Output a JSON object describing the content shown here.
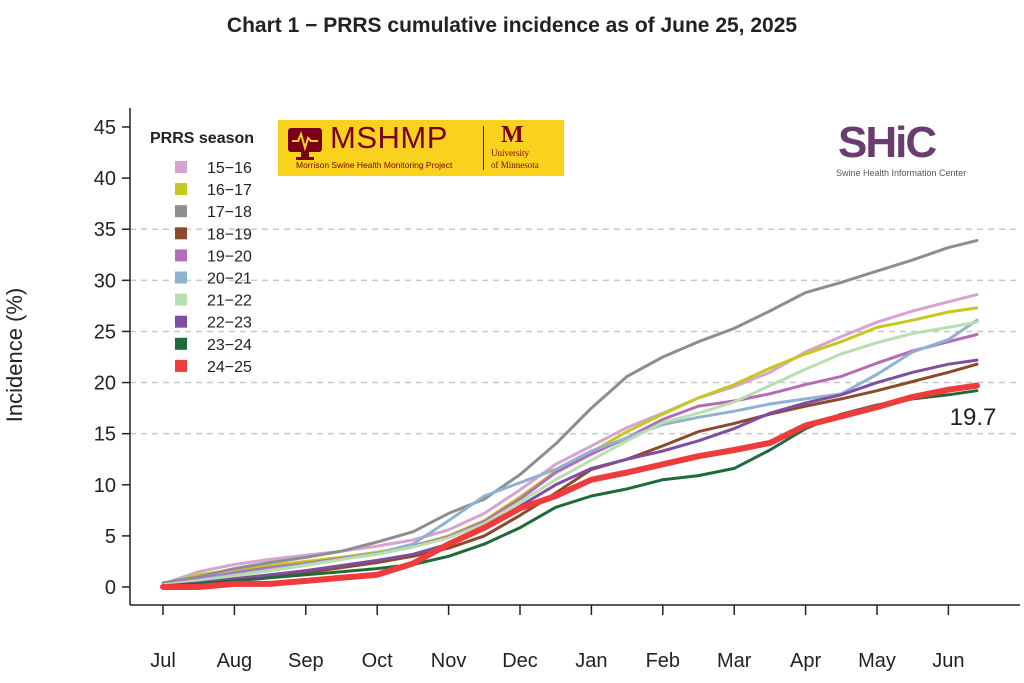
{
  "chart_data": {
    "type": "line",
    "title": "Chart 1 − PRRS cumulative incidence as of June 25, 2025",
    "ylabel": "Incidence (%)",
    "xlabel": "",
    "ylim": [
      0,
      45
    ],
    "yticks": [
      0,
      5,
      10,
      15,
      20,
      25,
      30,
      35,
      40,
      45
    ],
    "dashed_gridlines": [
      15,
      20,
      25,
      30,
      35
    ],
    "xlim": [
      0,
      11.5
    ],
    "x_tick_labels": [
      "Jul",
      "Aug",
      "Sep",
      "Oct",
      "Nov",
      "Dec",
      "Jan",
      "Feb",
      "Mar",
      "Apr",
      "May",
      "Jun"
    ],
    "x_unit": "months since July 1",
    "legend_title": "PRRS season",
    "legend_position": "top-left",
    "annotation": "19.7",
    "series": [
      {
        "name": "15−16",
        "color": "#d8a2d2",
        "x": [
          0,
          0.5,
          1,
          1.5,
          2,
          2.5,
          3,
          3.5,
          4,
          4.5,
          5,
          5.5,
          6,
          6.5,
          7,
          7.5,
          8,
          8.5,
          9,
          9.5,
          10,
          10.5,
          11,
          11.4
        ],
        "values": [
          0.3,
          1.5,
          2.2,
          2.7,
          3.1,
          3.5,
          4.0,
          4.6,
          5.6,
          7.2,
          9.5,
          12.0,
          13.8,
          15.6,
          17.0,
          18.5,
          19.6,
          21.0,
          23.0,
          24.5,
          25.9,
          27.0,
          27.9,
          28.6
        ]
      },
      {
        "name": "16−17",
        "color": "#c5c81e",
        "x": [
          0,
          0.5,
          1,
          1.5,
          2,
          2.5,
          3,
          3.5,
          4,
          4.5,
          5,
          5.5,
          6,
          6.5,
          7,
          7.5,
          8,
          8.5,
          9,
          9.5,
          10,
          10.5,
          11,
          11.4
        ],
        "values": [
          0.2,
          1.2,
          1.7,
          2.1,
          2.5,
          2.9,
          3.4,
          4.0,
          5.0,
          6.5,
          8.8,
          11.3,
          13.2,
          15.2,
          16.9,
          18.5,
          19.8,
          21.4,
          22.8,
          24.0,
          25.4,
          26.1,
          26.9,
          27.3
        ]
      },
      {
        "name": "17−18",
        "color": "#8e8e8e",
        "x": [
          0,
          0.5,
          1,
          1.5,
          2,
          2.5,
          3,
          3.5,
          4,
          4.5,
          5,
          5.5,
          6,
          6.5,
          7,
          7.5,
          8,
          8.5,
          9,
          9.5,
          10,
          10.5,
          11,
          11.4
        ],
        "values": [
          0.4,
          1.0,
          1.8,
          2.4,
          2.9,
          3.5,
          4.4,
          5.4,
          7.2,
          8.6,
          11.0,
          14.0,
          17.5,
          20.6,
          22.5,
          24.0,
          25.3,
          27.0,
          28.8,
          29.8,
          30.9,
          32.0,
          33.2,
          33.9
        ]
      },
      {
        "name": "18−19",
        "color": "#8b4a2b",
        "x": [
          0,
          0.5,
          1,
          1.5,
          2,
          2.5,
          3,
          3.5,
          4,
          4.5,
          5,
          5.5,
          6,
          6.5,
          7,
          7.5,
          8,
          8.5,
          9,
          9.5,
          10,
          10.5,
          11,
          11.4
        ],
        "values": [
          0.2,
          0.4,
          0.7,
          1.0,
          1.4,
          1.9,
          2.4,
          3.0,
          3.8,
          5.0,
          7.0,
          9.2,
          11.5,
          12.5,
          13.8,
          15.2,
          16.0,
          16.9,
          17.7,
          18.4,
          19.2,
          20.1,
          21.0,
          21.8
        ]
      },
      {
        "name": "19−20",
        "color": "#b46cb8",
        "x": [
          0,
          0.5,
          1,
          1.5,
          2,
          2.5,
          3,
          3.5,
          4,
          4.5,
          5,
          5.5,
          6,
          6.5,
          7,
          7.5,
          8,
          8.5,
          9,
          9.5,
          10,
          10.5,
          11,
          11.4
        ],
        "values": [
          0.2,
          0.8,
          1.4,
          1.9,
          2.3,
          2.8,
          3.3,
          4.0,
          4.9,
          6.4,
          8.6,
          11.2,
          13.0,
          14.6,
          16.4,
          17.7,
          18.2,
          18.9,
          19.8,
          20.6,
          21.9,
          23.1,
          24.0,
          24.7
        ]
      },
      {
        "name": "20−21",
        "color": "#8fb3cf",
        "x": [
          0,
          0.5,
          1,
          1.5,
          2,
          2.5,
          3,
          3.5,
          4,
          4.5,
          5,
          5.5,
          6,
          6.5,
          7,
          7.5,
          8,
          8.5,
          9,
          9.5,
          10,
          10.5,
          11,
          11.4
        ],
        "values": [
          0.2,
          0.7,
          1.2,
          1.7,
          2.2,
          2.7,
          3.3,
          4.2,
          6.5,
          8.9,
          10.2,
          11.5,
          13.3,
          14.6,
          15.9,
          16.6,
          17.2,
          17.9,
          18.4,
          18.9,
          20.8,
          23.0,
          24.2,
          26.1
        ]
      },
      {
        "name": "21−22",
        "color": "#b9dfb0",
        "x": [
          0,
          0.5,
          1,
          1.5,
          2,
          2.5,
          3,
          3.5,
          4,
          4.5,
          5,
          5.5,
          6,
          6.5,
          7,
          7.5,
          8,
          8.5,
          9,
          9.5,
          10,
          10.5,
          11,
          11.4
        ],
        "values": [
          0.2,
          0.6,
          1.1,
          1.6,
          2.1,
          2.7,
          3.2,
          3.9,
          4.8,
          6.2,
          8.3,
          10.5,
          12.4,
          14.3,
          16.1,
          17.0,
          18.1,
          19.7,
          21.3,
          22.8,
          23.9,
          24.8,
          25.4,
          25.9
        ]
      },
      {
        "name": "22−23",
        "color": "#7e4ea3",
        "x": [
          0,
          0.5,
          1,
          1.5,
          2,
          2.5,
          3,
          3.5,
          4,
          4.5,
          5,
          5.5,
          6,
          6.5,
          7,
          7.5,
          8,
          8.5,
          9,
          9.5,
          10,
          10.5,
          11,
          11.4
        ],
        "values": [
          0.1,
          0.4,
          0.8,
          1.2,
          1.6,
          2.1,
          2.6,
          3.2,
          4.2,
          5.8,
          7.9,
          10.0,
          11.6,
          12.5,
          13.3,
          14.3,
          15.5,
          17.0,
          18.0,
          18.8,
          20.0,
          21.0,
          21.8,
          22.2
        ]
      },
      {
        "name": "23−24",
        "color": "#1f6a3a",
        "x": [
          0,
          0.5,
          1,
          1.5,
          2,
          2.5,
          3,
          3.5,
          4,
          4.5,
          5,
          5.5,
          6,
          6.5,
          7,
          7.5,
          8,
          8.5,
          9,
          9.5,
          10,
          10.5,
          11,
          11.4
        ],
        "values": [
          0.1,
          0.3,
          0.6,
          0.9,
          1.2,
          1.5,
          1.8,
          2.2,
          3.0,
          4.2,
          5.8,
          7.8,
          8.9,
          9.6,
          10.5,
          10.9,
          11.6,
          13.4,
          15.5,
          16.9,
          17.8,
          18.4,
          18.8,
          19.2
        ]
      },
      {
        "name": "24−25",
        "color": "#ee3b3b",
        "x": [
          0,
          0.5,
          1,
          1.5,
          2,
          2.5,
          3,
          3.5,
          4,
          4.5,
          5,
          5.5,
          6,
          6.5,
          7,
          7.5,
          8,
          8.5,
          9,
          9.5,
          10,
          10.5,
          11,
          11.4
        ],
        "values": [
          0.0,
          0.0,
          0.3,
          0.3,
          0.6,
          0.9,
          1.2,
          2.3,
          4.2,
          5.8,
          7.7,
          8.9,
          10.5,
          11.2,
          12.0,
          12.8,
          13.4,
          14.1,
          15.8,
          16.7,
          17.6,
          18.6,
          19.3,
          19.7
        ]
      }
    ]
  },
  "logos": {
    "mshmp_title": "MSHMP",
    "mshmp_subtitle": "Morrison Swine Health Monitoring Project",
    "umn_line1": "University",
    "umn_line2": "of Minnesota",
    "shic_name": "SHiC",
    "shic_subtitle": "Swine Health Information Center"
  }
}
